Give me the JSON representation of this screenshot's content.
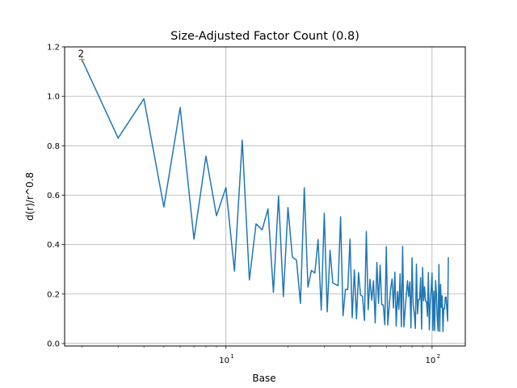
{
  "colors": {
    "line": "#1f77b4",
    "marker": "#ff7f0e",
    "grid": "#b0b0b0",
    "axis": "#000000"
  },
  "chart_data": {
    "type": "line",
    "title": "Size-Adjusted Factor Count (0.8)",
    "xlabel": "Base",
    "ylabel": "d(r)/r^0.8",
    "xscale": "log",
    "xlim": [
      1.65,
      145
    ],
    "ylim": [
      -0.01,
      1.2
    ],
    "grid": true,
    "x_ticks": [
      {
        "value": 10,
        "base": "10",
        "exp": "1"
      },
      {
        "value": 100,
        "base": "10",
        "exp": "2"
      }
    ],
    "y_ticks": [
      {
        "value": 0.0,
        "label": "0.0"
      },
      {
        "value": 0.2,
        "label": "0.2"
      },
      {
        "value": 0.4,
        "label": "0.4"
      },
      {
        "value": 0.6,
        "label": "0.6"
      },
      {
        "value": 0.8,
        "label": "0.8"
      },
      {
        "value": 1.0,
        "label": "1.0"
      },
      {
        "value": 1.2,
        "label": "1.2"
      }
    ],
    "series": [
      {
        "name": "d(r)/r^0.8",
        "x": [
          2,
          3,
          4,
          5,
          6,
          7,
          8,
          9,
          10,
          11,
          12,
          13,
          14,
          15,
          16,
          17,
          18,
          19,
          20,
          21,
          22,
          23,
          24,
          25,
          26,
          27,
          28,
          29,
          30,
          31,
          32,
          33,
          34,
          35,
          36,
          37,
          38,
          39,
          40,
          41,
          42,
          43,
          44,
          45,
          46,
          47,
          48,
          49,
          50,
          51,
          52,
          53,
          54,
          55,
          56,
          57,
          58,
          59,
          60,
          61,
          62,
          63,
          64,
          65,
          66,
          67,
          68,
          69,
          70,
          71,
          72,
          73,
          74,
          75,
          76,
          77,
          78,
          79,
          80,
          81,
          82,
          83,
          84,
          85,
          86,
          87,
          88,
          89,
          90,
          91,
          92,
          93,
          94,
          95,
          96,
          97,
          98,
          99,
          100,
          101,
          102,
          103,
          104,
          105,
          106,
          107,
          108,
          109,
          110,
          111,
          112,
          113,
          114,
          115,
          116,
          117,
          118,
          119,
          120
        ],
        "values": [
          1.149,
          0.831,
          0.99,
          0.552,
          0.955,
          0.422,
          0.758,
          0.517,
          0.631,
          0.293,
          0.823,
          0.257,
          0.484,
          0.46,
          0.545,
          0.207,
          0.597,
          0.19,
          0.55,
          0.35,
          0.337,
          0.162,
          0.63,
          0.228,
          0.296,
          0.285,
          0.42,
          0.135,
          0.527,
          0.128,
          0.377,
          0.246,
          0.239,
          0.234,
          0.513,
          0.112,
          0.219,
          0.218,
          0.422,
          0.104,
          0.298,
          0.1,
          0.287,
          0.196,
          0.191,
          0.093,
          0.453,
          0.137,
          0.26,
          0.175,
          0.254,
          0.083,
          0.328,
          0.162,
          0.317,
          0.158,
          0.156,
          0.076,
          0.392,
          0.075,
          0.15,
          0.223,
          0.261,
          0.144,
          0.289,
          0.07,
          0.21,
          0.138,
          0.282,
          0.068,
          0.393,
          0.067,
          0.133,
          0.196,
          0.254,
          0.19,
          0.249,
          0.063,
          0.347,
          0.156,
          0.123,
          0.061,
          0.321,
          0.12,
          0.178,
          0.178,
          0.266,
          0.058,
          0.307,
          0.173,
          0.229,
          0.171,
          0.169,
          0.11,
          0.287,
          0.055,
          0.163,
          0.216,
          0.285,
          0.053,
          0.212,
          0.052,
          0.255,
          0.201,
          0.1,
          0.05,
          0.32,
          0.049,
          0.239,
          0.146,
          0.193,
          0.048,
          0.143,
          0.141,
          0.188,
          0.187,
          0.139,
          0.091,
          0.349
        ]
      }
    ],
    "annotations": [
      {
        "text": "2",
        "x": 2,
        "y": 1.149
      }
    ]
  }
}
